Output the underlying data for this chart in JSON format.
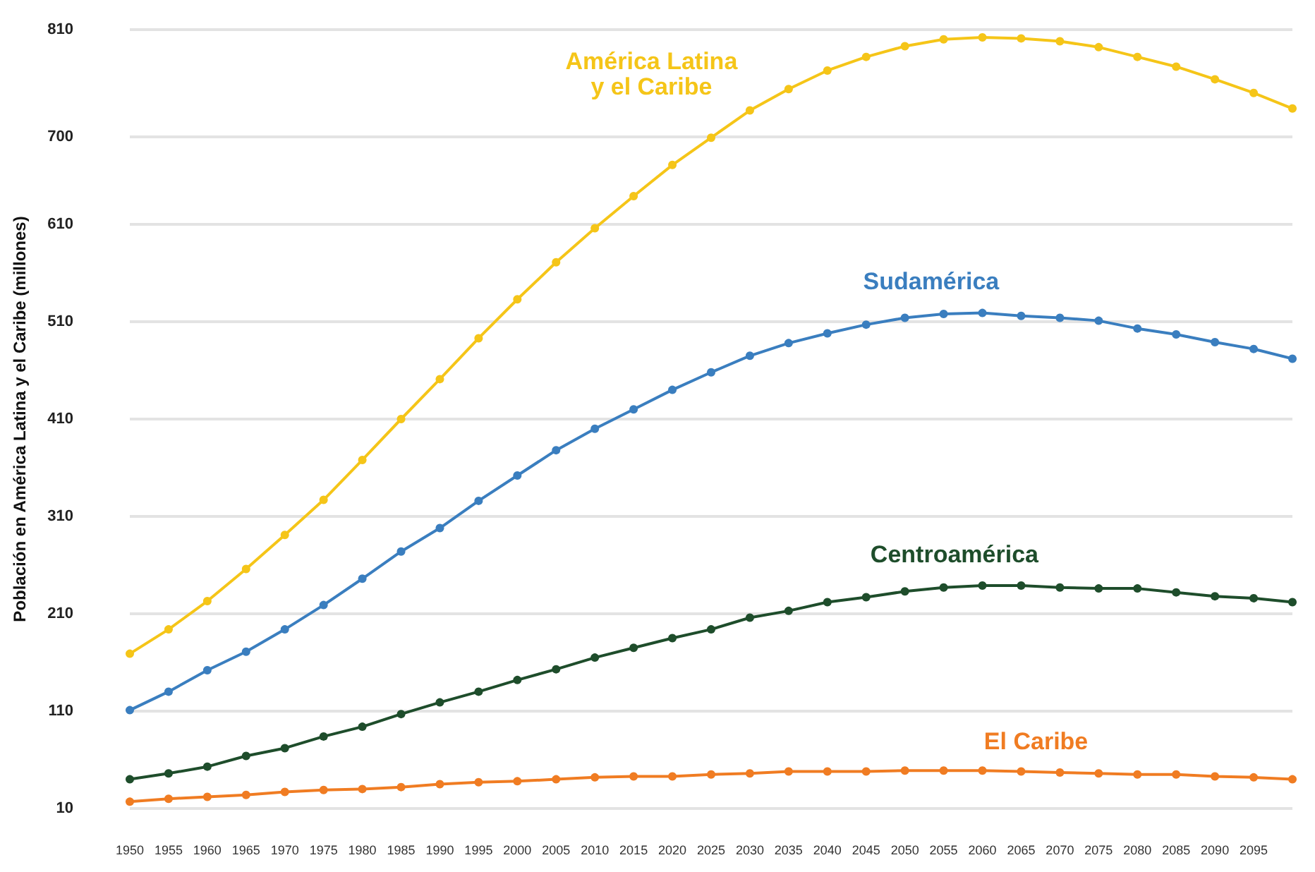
{
  "chart_data": {
    "type": "line",
    "ylabel": "Población en América Latina y el Caribe (millones)",
    "categories": [
      "1950",
      "1955",
      "1960",
      "1965",
      "1970",
      "1975",
      "1980",
      "1985",
      "1990",
      "1995",
      "2000",
      "2005",
      "2010",
      "2015",
      "2020",
      "2025",
      "2030",
      "2035",
      "2040",
      "2045",
      "2050",
      "2055",
      "2060",
      "2065",
      "2070",
      "2075",
      "2080",
      "2085",
      "2090",
      "2095",
      null
    ],
    "series": [
      {
        "name": "América Latina\ny el Caribe",
        "color": "#f5c518",
        "values": [
          169,
          194,
          223,
          256,
          291,
          327,
          368,
          410,
          451,
          493,
          533,
          571,
          606,
          639,
          671,
          699,
          727,
          749,
          768,
          782,
          793,
          800,
          802,
          801,
          798,
          792,
          782,
          772,
          759,
          745,
          729
        ]
      },
      {
        "name": "Sudamérica",
        "color": "#3a7ebf",
        "values": [
          111,
          130,
          152,
          171,
          194,
          219,
          246,
          274,
          298,
          326,
          352,
          378,
          400,
          420,
          440,
          458,
          475,
          488,
          498,
          507,
          514,
          518,
          519,
          516,
          514,
          511,
          503,
          497,
          489,
          482,
          472
        ]
      },
      {
        "name": "Centroamérica",
        "color": "#1e4d2b",
        "values": [
          40,
          46,
          53,
          64,
          72,
          84,
          94,
          107,
          119,
          130,
          142,
          153,
          165,
          175,
          185,
          194,
          206,
          213,
          222,
          227,
          233,
          237,
          239,
          239,
          237,
          236,
          236,
          232,
          228,
          226,
          222
        ]
      },
      {
        "name": "El Caribe",
        "color": "#f07c22",
        "values": [
          17,
          20,
          22,
          24,
          27,
          29,
          30,
          32,
          35,
          37,
          38,
          40,
          42,
          43,
          43,
          45,
          46,
          48,
          48,
          48,
          49,
          49,
          49,
          48,
          47,
          46,
          45,
          45,
          43,
          42,
          40
        ]
      }
    ],
    "ylim": [
      10,
      810
    ],
    "yticks": [
      10,
      110,
      210,
      310,
      410,
      510,
      610,
      700,
      810
    ],
    "grid": "y",
    "marker": "circle",
    "line_style": "solid",
    "legend": false
  }
}
